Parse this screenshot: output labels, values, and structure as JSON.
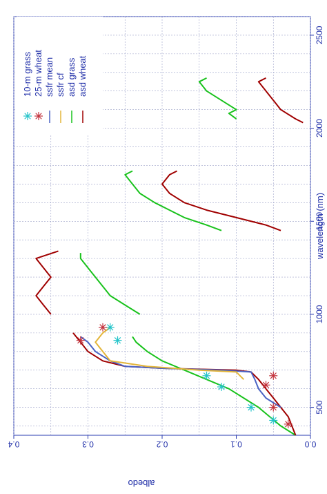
{
  "chart_data": {
    "type": "line",
    "xlabel": "wavelength (nm)",
    "ylabel": "albedo",
    "xlim": [
      350,
      2600
    ],
    "ylim": [
      0.0,
      0.4
    ],
    "x_ticks": [
      "500",
      "1000",
      "1500",
      "2000",
      "2500"
    ],
    "y_ticks": [
      "0.0",
      "0.1",
      "0.2",
      "0.3",
      "0.4"
    ],
    "grid": true,
    "legend_position": "top-left (rotated plot)",
    "legend": [
      {
        "label": "10-m grass",
        "color": "#22c3c9",
        "marker": "asterisk"
      },
      {
        "label": "25-m wheat",
        "color": "#c2313b",
        "marker": "asterisk"
      },
      {
        "label": "ssfr mean",
        "color": "#4a63c4",
        "marker": "line"
      },
      {
        "label": "ssfr cf",
        "color": "#e3b53a",
        "marker": "line"
      },
      {
        "label": "asd grass",
        "color": "#19c21c",
        "marker": "line"
      },
      {
        "label": "asd wheat",
        "color": "#a00000",
        "marker": "line"
      }
    ],
    "series": [
      {
        "name": "asd grass",
        "color": "#19c21c",
        "segments": [
          [
            [
              350,
              0.02
            ],
            [
              400,
              0.04
            ],
            [
              450,
              0.055
            ],
            [
              500,
              0.07
            ],
            [
              550,
              0.09
            ],
            [
              600,
              0.11
            ],
            [
              650,
              0.14
            ],
            [
              700,
              0.17
            ],
            [
              750,
              0.2
            ],
            [
              800,
              0.22
            ],
            [
              850,
              0.235
            ],
            [
              880,
              0.24
            ]
          ],
          [
            [
              1000,
              0.23
            ],
            [
              1050,
              0.25
            ],
            [
              1100,
              0.27
            ],
            [
              1150,
              0.28
            ],
            [
              1200,
              0.29
            ],
            [
              1250,
              0.3
            ],
            [
              1300,
              0.31
            ],
            [
              1330,
              0.31
            ]
          ],
          [
            [
              1450,
              0.12
            ],
            [
              1480,
              0.14
            ],
            [
              1520,
              0.17
            ],
            [
              1560,
              0.19
            ],
            [
              1600,
              0.21
            ],
            [
              1650,
              0.23
            ],
            [
              1700,
              0.24
            ],
            [
              1750,
              0.25
            ],
            [
              1770,
              0.24
            ]
          ],
          [
            [
              2050,
              0.1
            ],
            [
              2080,
              0.11
            ],
            [
              2100,
              0.1
            ],
            [
              2150,
              0.12
            ],
            [
              2200,
              0.14
            ],
            [
              2250,
              0.15
            ],
            [
              2270,
              0.14
            ]
          ]
        ]
      },
      {
        "name": "asd wheat",
        "color": "#a00000",
        "segments": [
          [
            [
              350,
              0.02
            ],
            [
              400,
              0.025
            ],
            [
              450,
              0.03
            ],
            [
              500,
              0.04
            ],
            [
              550,
              0.05
            ],
            [
              600,
              0.06
            ],
            [
              650,
              0.07
            ],
            [
              690,
              0.08
            ],
            [
              700,
              0.1
            ],
            [
              710,
              0.2
            ],
            [
              720,
              0.25
            ],
            [
              750,
              0.28
            ],
            [
              800,
              0.3
            ],
            [
              850,
              0.31
            ],
            [
              900,
              0.32
            ]
          ],
          [
            [
              1000,
              0.35
            ],
            [
              1050,
              0.36
            ],
            [
              1100,
              0.37
            ],
            [
              1150,
              0.36
            ],
            [
              1200,
              0.35
            ],
            [
              1250,
              0.36
            ],
            [
              1300,
              0.37
            ],
            [
              1340,
              0.34
            ]
          ],
          [
            [
              1450,
              0.04
            ],
            [
              1480,
              0.06
            ],
            [
              1520,
              0.1
            ],
            [
              1560,
              0.14
            ],
            [
              1600,
              0.17
            ],
            [
              1650,
              0.19
            ],
            [
              1700,
              0.2
            ],
            [
              1750,
              0.19
            ],
            [
              1770,
              0.18
            ]
          ],
          [
            [
              2030,
              0.01
            ],
            [
              2050,
              0.02
            ],
            [
              2100,
              0.04
            ],
            [
              2150,
              0.05
            ],
            [
              2200,
              0.06
            ],
            [
              2250,
              0.07
            ],
            [
              2270,
              0.06
            ]
          ]
        ]
      },
      {
        "name": "ssfr mean",
        "color": "#4a63c4",
        "segments": [
          [
            [
              500,
              0.04
            ],
            [
              550,
              0.06
            ],
            [
              600,
              0.07
            ],
            [
              650,
              0.075
            ],
            [
              690,
              0.08
            ],
            [
              700,
              0.12
            ],
            [
              710,
              0.2
            ],
            [
              720,
              0.25
            ],
            [
              750,
              0.27
            ],
            [
              800,
              0.29
            ],
            [
              850,
              0.3
            ],
            [
              880,
              0.31
            ]
          ]
        ]
      },
      {
        "name": "ssfr cf",
        "color": "#e3b53a",
        "segments": [
          [
            [
              650,
              0.09
            ],
            [
              690,
              0.1
            ],
            [
              700,
              0.15
            ],
            [
              720,
              0.22
            ],
            [
              750,
              0.27
            ],
            [
              800,
              0.28
            ],
            [
              850,
              0.29
            ],
            [
              900,
              0.28
            ],
            [
              930,
              0.27
            ]
          ]
        ]
      }
    ],
    "markers": [
      {
        "name": "10-m grass",
        "color": "#22c3c9",
        "points": [
          [
            430,
            0.05
          ],
          [
            500,
            0.08
          ],
          [
            610,
            0.12
          ],
          [
            670,
            0.14
          ],
          [
            860,
            0.26
          ],
          [
            930,
            0.27
          ]
        ]
      },
      {
        "name": "25-m wheat",
        "color": "#c2313b",
        "points": [
          [
            410,
            0.03
          ],
          [
            500,
            0.05
          ],
          [
            620,
            0.06
          ],
          [
            670,
            0.05
          ],
          [
            860,
            0.31
          ],
          [
            930,
            0.28
          ]
        ]
      }
    ]
  }
}
